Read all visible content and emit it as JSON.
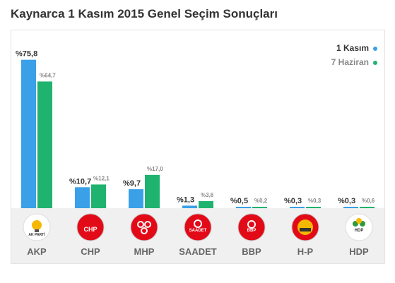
{
  "title": "Kaynarca 1 Kasım 2015 Genel Seçim Sonuçları",
  "colors": {
    "series1": "#3aa0e8",
    "series2": "#1fb36f"
  },
  "chart_data": {
    "type": "bar",
    "title": "Kaynarca 1 Kasım 2015 Genel Seçim Sonuçları",
    "categories": [
      "AKP",
      "CHP",
      "MHP",
      "SAADET",
      "BBP",
      "H-P",
      "HDP"
    ],
    "series": [
      {
        "name": "1 Kasım",
        "values": [
          75.8,
          10.7,
          9.7,
          1.3,
          0.5,
          0.3,
          0.3
        ],
        "labels": [
          "%75,8",
          "%10,7",
          "%9,7",
          "%1,3",
          "%0,5",
          "%0,3",
          "%0,3"
        ]
      },
      {
        "name": "7 Haziran",
        "values": [
          64.7,
          12.1,
          17.0,
          3.6,
          0.2,
          0.3,
          0.6
        ],
        "labels": [
          "%64,7",
          "%12,1",
          "%17,0",
          "%3,6",
          "%0,2",
          "%0,3",
          "%0,6"
        ]
      }
    ],
    "logo_texts": [
      "AK PARTİ",
      "CHP",
      "",
      "SAADET",
      "BBP",
      "",
      "HDP"
    ],
    "ylim": [
      0,
      80
    ],
    "legend": "top-right",
    "grid": false
  }
}
